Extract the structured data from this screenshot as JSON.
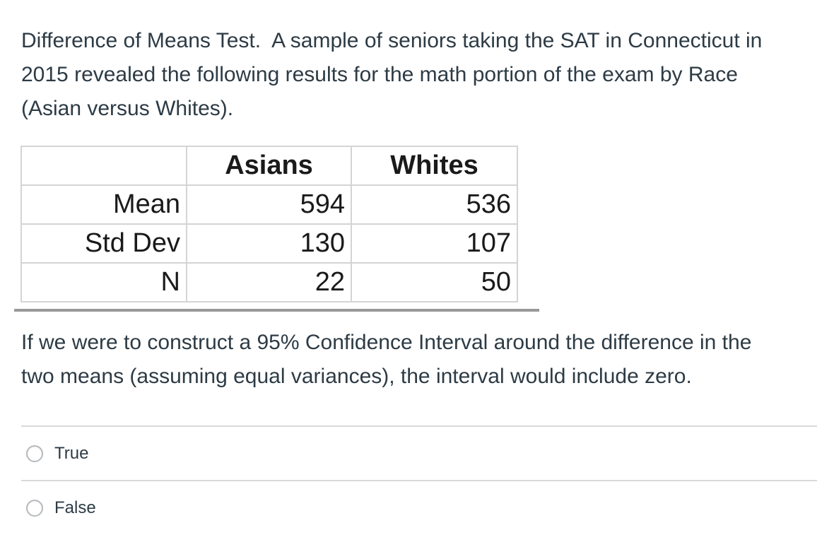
{
  "colors": {
    "page_background": "#ffffff",
    "body_text": "#2d3b45",
    "table_text": "#1a1a1a",
    "table_border": "#d4d4d4",
    "table_image_edge": "#999999",
    "divider": "#d9d9d9",
    "radio_border": "#b5babe"
  },
  "question": {
    "paragraph1_lines": [
      "Difference of Means Test.  A sample of seniors taking the SAT in Connecticut in",
      "2015 revealed the following results for the math portion of the exam by Race",
      "(Asian versus Whites)."
    ],
    "paragraph2_lines": [
      "If we were to construct a 95% Confidence Interval around the difference in the",
      "two means (assuming equal variances), the interval would include zero."
    ]
  },
  "stats_table": {
    "column_headers": [
      "Asians",
      "Whites"
    ],
    "rows": [
      {
        "label": "Mean",
        "asians": "594",
        "whites": "536"
      },
      {
        "label": "Std Dev",
        "asians": "130",
        "whites": "107"
      },
      {
        "label": "N",
        "asians": "22",
        "whites": "50"
      }
    ]
  },
  "answers": {
    "options": [
      {
        "label": "True",
        "selected": false
      },
      {
        "label": "False",
        "selected": false
      }
    ]
  }
}
